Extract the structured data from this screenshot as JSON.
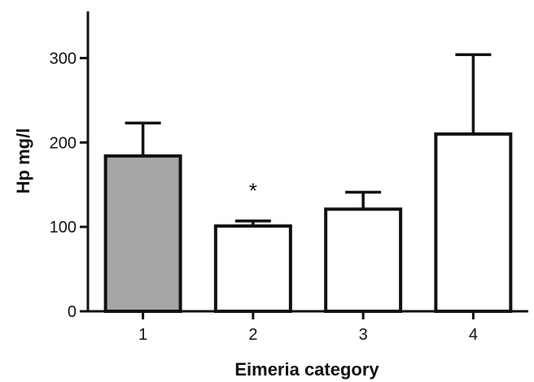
{
  "chart_data": {
    "type": "bar",
    "title": "",
    "xlabel": "Eimeria category",
    "ylabel": "Hp mg/l",
    "categories": [
      "1",
      "2",
      "3",
      "4"
    ],
    "values": [
      184,
      101,
      121,
      210
    ],
    "error_upper": [
      223,
      107,
      141,
      304
    ],
    "bar_colors": [
      "#a6a6a6",
      "#ffffff",
      "#ffffff",
      "#ffffff"
    ],
    "ylim": [
      0,
      350
    ],
    "yticks": [
      {
        "value": 0,
        "label": "0"
      },
      {
        "value": 100,
        "label": "100"
      },
      {
        "value": 200,
        "label": "200"
      },
      {
        "value": 300,
        "label": "300"
      }
    ],
    "grid": false,
    "annotations": [
      {
        "text": "*",
        "category_index": 1,
        "y": 148
      }
    ]
  }
}
